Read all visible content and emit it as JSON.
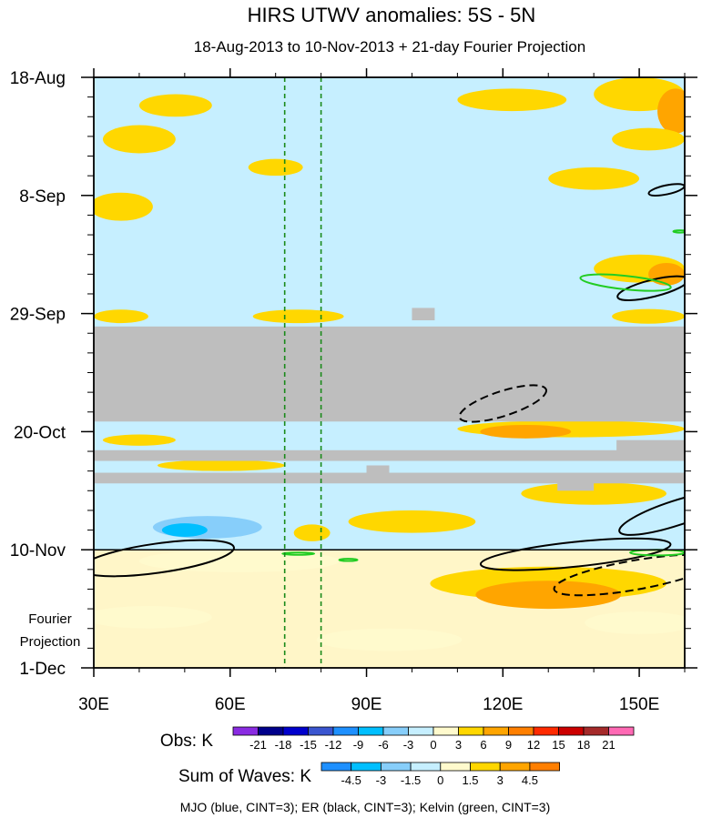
{
  "chart_data": {
    "type": "heatmap",
    "title": "HIRS UTWV anomalies: 5S - 5N",
    "subtitle": "18-Aug-2013 to 10-Nov-2013 + 21-day Fourier Projection",
    "x_axis": {
      "range": [
        30,
        160
      ],
      "ticks": [
        {
          "value": 30,
          "label": "30E"
        },
        {
          "value": 60,
          "label": "60E"
        },
        {
          "value": 90,
          "label": "90E"
        },
        {
          "value": 120,
          "label": "120E"
        },
        {
          "value": 150,
          "label": "150E"
        }
      ],
      "minor_step": 10
    },
    "y_axis": {
      "range_days": [
        0,
        105
      ],
      "start_date": "18-Aug-2013",
      "ticks": [
        {
          "day": 0,
          "label": "18-Aug"
        },
        {
          "day": 21,
          "label": "8-Sep"
        },
        {
          "day": 42,
          "label": "29-Sep"
        },
        {
          "day": 63,
          "label": "20-Oct"
        },
        {
          "day": 84,
          "label": "10-Nov"
        },
        {
          "day": 105,
          "label": "1-Dec"
        }
      ],
      "minor_step_days": 3.5
    },
    "projection_label": [
      "Fourier",
      "Projection"
    ],
    "observation_end_day": 84,
    "reference_lines_lon": [
      72,
      80
    ],
    "missing_data_bands": [
      {
        "lon": [
          30,
          160
        ],
        "day": [
          44.3,
          61.2
        ]
      },
      {
        "lon": [
          30,
          160
        ],
        "day": [
          66.3,
          68.2
        ]
      },
      {
        "lon": [
          30,
          160
        ],
        "day": [
          70.3,
          72.2
        ]
      },
      {
        "lon": [
          100,
          105
        ],
        "day": [
          41.0,
          43.2
        ]
      },
      {
        "lon": [
          145,
          160
        ],
        "day": [
          64.5,
          66.5
        ]
      },
      {
        "lon": [
          132,
          140
        ],
        "day": [
          71.9,
          73.5
        ]
      },
      {
        "lon": [
          90,
          95
        ],
        "day": [
          69.0,
          70.3
        ]
      }
    ],
    "anomaly_blobs": [
      {
        "lon": 36,
        "day": 3,
        "rx": 6,
        "ry": 2,
        "value": -3
      },
      {
        "lon": 48,
        "day": 5,
        "rx": 8,
        "ry": 2,
        "value": 3
      },
      {
        "lon": 82,
        "day": 6,
        "rx": 12,
        "ry": 2,
        "value": -3
      },
      {
        "lon": 122,
        "day": 4,
        "rx": 12,
        "ry": 2,
        "value": 3
      },
      {
        "lon": 150,
        "day": 3,
        "rx": 10,
        "ry": 3,
        "value": 3
      },
      {
        "lon": 158,
        "day": 6,
        "rx": 4,
        "ry": 4,
        "value": 6
      },
      {
        "lon": 40,
        "day": 11,
        "rx": 8,
        "ry": 2.5,
        "value": 3
      },
      {
        "lon": 63,
        "day": 11,
        "rx": 9,
        "ry": 2,
        "value": -3
      },
      {
        "lon": 94,
        "day": 11,
        "rx": 12,
        "ry": 2,
        "value": -3
      },
      {
        "lon": 130,
        "day": 12,
        "rx": 14,
        "ry": 2.5,
        "value": -3
      },
      {
        "lon": 152,
        "day": 11,
        "rx": 8,
        "ry": 2,
        "value": 3
      },
      {
        "lon": 45,
        "day": 17,
        "rx": 10,
        "ry": 2,
        "value": -3
      },
      {
        "lon": 70,
        "day": 16,
        "rx": 6,
        "ry": 1.5,
        "value": 3
      },
      {
        "lon": 118,
        "day": 16,
        "rx": 10,
        "ry": 2,
        "value": -3
      },
      {
        "lon": 140,
        "day": 18,
        "rx": 10,
        "ry": 2,
        "value": 3
      },
      {
        "lon": 36,
        "day": 23,
        "rx": 7,
        "ry": 2.5,
        "value": 3
      },
      {
        "lon": 70,
        "day": 22,
        "rx": 12,
        "ry": 2,
        "value": -3
      },
      {
        "lon": 110,
        "day": 22,
        "rx": 16,
        "ry": 2,
        "value": -3
      },
      {
        "lon": 148,
        "day": 24,
        "rx": 8,
        "ry": 2,
        "value": -3
      },
      {
        "lon": 55,
        "day": 28,
        "rx": 12,
        "ry": 2,
        "value": -3
      },
      {
        "lon": 88,
        "day": 27,
        "rx": 10,
        "ry": 2,
        "value": -3
      },
      {
        "lon": 132,
        "day": 28,
        "rx": 14,
        "ry": 2,
        "value": -3
      },
      {
        "lon": 42,
        "day": 33,
        "rx": 10,
        "ry": 2,
        "value": -3
      },
      {
        "lon": 78,
        "day": 33,
        "rx": 8,
        "ry": 2,
        "value": -3
      },
      {
        "lon": 115,
        "day": 32,
        "rx": 10,
        "ry": 2,
        "value": -3
      },
      {
        "lon": 150,
        "day": 34,
        "rx": 10,
        "ry": 2.5,
        "value": 3
      },
      {
        "lon": 156,
        "day": 35,
        "rx": 4,
        "ry": 2,
        "value": 6
      },
      {
        "lon": 52,
        "day": 38,
        "rx": 10,
        "ry": 2,
        "value": -3
      },
      {
        "lon": 92,
        "day": 38,
        "rx": 14,
        "ry": 2,
        "value": -3
      },
      {
        "lon": 138,
        "day": 39,
        "rx": 12,
        "ry": 2,
        "value": -3
      },
      {
        "lon": 36,
        "day": 42.5,
        "rx": 6,
        "ry": 1.2,
        "value": 3
      },
      {
        "lon": 75,
        "day": 42.5,
        "rx": 10,
        "ry": 1.2,
        "value": 3
      },
      {
        "lon": 152,
        "day": 42.5,
        "rx": 8,
        "ry": 1.3,
        "value": 3
      },
      {
        "lon": 135,
        "day": 62.5,
        "rx": 25,
        "ry": 1.5,
        "value": 3
      },
      {
        "lon": 125,
        "day": 63,
        "rx": 10,
        "ry": 1.2,
        "value": 6
      },
      {
        "lon": 52,
        "day": 63.5,
        "rx": 12,
        "ry": 1.2,
        "value": -3
      },
      {
        "lon": 90,
        "day": 63.5,
        "rx": 12,
        "ry": 1.2,
        "value": -3
      },
      {
        "lon": 40,
        "day": 64.5,
        "rx": 8,
        "ry": 1,
        "value": 3
      },
      {
        "lon": 110,
        "day": 69,
        "rx": 20,
        "ry": 1,
        "value": -3
      },
      {
        "lon": 58,
        "day": 69,
        "rx": 14,
        "ry": 1,
        "value": 3
      },
      {
        "lon": 45,
        "day": 75,
        "rx": 10,
        "ry": 2,
        "value": -3
      },
      {
        "lon": 95,
        "day": 75,
        "rx": 16,
        "ry": 2,
        "value": -3
      },
      {
        "lon": 140,
        "day": 74,
        "rx": 16,
        "ry": 2,
        "value": 3
      },
      {
        "lon": 55,
        "day": 80,
        "rx": 12,
        "ry": 2,
        "value": -6
      },
      {
        "lon": 50,
        "day": 80.5,
        "rx": 5,
        "ry": 1.2,
        "value": -9
      },
      {
        "lon": 100,
        "day": 79,
        "rx": 14,
        "ry": 2,
        "value": 3
      },
      {
        "lon": 145,
        "day": 80,
        "rx": 12,
        "ry": 2,
        "value": -3
      },
      {
        "lon": 78,
        "day": 81,
        "rx": 4,
        "ry": 1.5,
        "value": 3
      }
    ],
    "projection_blobs": [
      {
        "lon": 62,
        "day": 86,
        "rx": 22,
        "ry": 2,
        "value": 0
      },
      {
        "lon": 130,
        "day": 90,
        "rx": 26,
        "ry": 3,
        "value": 1.5
      },
      {
        "lon": 130,
        "day": 92,
        "rx": 16,
        "ry": 2.5,
        "value": 3
      },
      {
        "lon": 42,
        "day": 96,
        "rx": 14,
        "ry": 2,
        "value": 0
      },
      {
        "lon": 150,
        "day": 97,
        "rx": 12,
        "ry": 2,
        "value": 0
      },
      {
        "lon": 95,
        "day": 100,
        "rx": 16,
        "ry": 2,
        "value": 0
      }
    ],
    "wave_contours": [
      {
        "wave": "ER",
        "style": "solid",
        "color": "#000000",
        "lon": 44,
        "day": 85.5,
        "rx": 17,
        "ry": 2.6,
        "angle": -8
      },
      {
        "wave": "ER",
        "style": "solid",
        "color": "#000000",
        "lon": 136,
        "day": 84.8,
        "rx": 21,
        "ry": 2.2,
        "angle": -6
      },
      {
        "wave": "ER",
        "style": "solid",
        "color": "#000000",
        "lon": 158,
        "day": 77.5,
        "rx": 13,
        "ry": 2.2,
        "angle": -18
      },
      {
        "wave": "ER",
        "style": "solid",
        "color": "#000000",
        "lon": 156,
        "day": 20,
        "rx": 4,
        "ry": 0.8,
        "angle": -12
      },
      {
        "wave": "ER",
        "style": "solid",
        "color": "#000000",
        "lon": 153,
        "day": 37.5,
        "rx": 8,
        "ry": 1.5,
        "angle": -14
      },
      {
        "wave": "ER",
        "style": "dashed",
        "color": "#000000",
        "lon": 120,
        "day": 58,
        "rx": 10,
        "ry": 2.2,
        "angle": -18
      },
      {
        "wave": "ER",
        "style": "dashed",
        "color": "#000000",
        "lon": 149,
        "day": 88.5,
        "rx": 18,
        "ry": 2.6,
        "angle": -10
      },
      {
        "wave": "Kelvin",
        "style": "solid",
        "color": "#22cc22",
        "lon": 147,
        "day": 36.5,
        "rx": 10,
        "ry": 1.2,
        "angle": 6
      },
      {
        "wave": "Kelvin",
        "style": "solid",
        "color": "#22cc22",
        "lon": 75,
        "day": 84.7,
        "rx": 3.5,
        "ry": 0.2,
        "angle": 0
      },
      {
        "wave": "Kelvin",
        "style": "solid",
        "color": "#22cc22",
        "lon": 86,
        "day": 85.8,
        "rx": 2,
        "ry": 0.2,
        "angle": 0
      },
      {
        "wave": "Kelvin",
        "style": "solid",
        "color": "#22cc22",
        "lon": 154,
        "day": 84.5,
        "rx": 6,
        "ry": 0.5,
        "angle": 0
      },
      {
        "wave": "Kelvin",
        "style": "solid",
        "color": "#22cc22",
        "lon": 159,
        "day": 27.4,
        "rx": 1.5,
        "ry": 0.2,
        "angle": 0
      }
    ],
    "obs_colorbar": {
      "label": "Obs: K",
      "levels": [
        "-21",
        "-18",
        "-15",
        "-12",
        "-9",
        "-6",
        "-3",
        "0",
        "3",
        "6",
        "9",
        "12",
        "15",
        "18",
        "21"
      ],
      "colors": [
        "#8a2be2",
        "#00008b",
        "#0000cd",
        "#3a55d0",
        "#1e90ff",
        "#00bfff",
        "#87cefa",
        "#c6efff",
        "#fffacd",
        "#ffd700",
        "#ffa500",
        "#ff7f00",
        "#ff2a00",
        "#cc0000",
        "#a52a2a",
        "#ff69b4"
      ]
    },
    "waves_colorbar": {
      "label": "Sum of Waves: K",
      "levels": [
        "-4.5",
        "-3",
        "-1.5",
        "0",
        "1.5",
        "3",
        "4.5"
      ],
      "colors": [
        "#1e90ff",
        "#00bfff",
        "#87cefa",
        "#c6efff",
        "#fffacd",
        "#ffd700",
        "#ffa500",
        "#ff7f00"
      ]
    },
    "caption": "MJO (blue, CINT=3); ER (black, CINT=3); Kelvin (green, CINT=3)"
  }
}
